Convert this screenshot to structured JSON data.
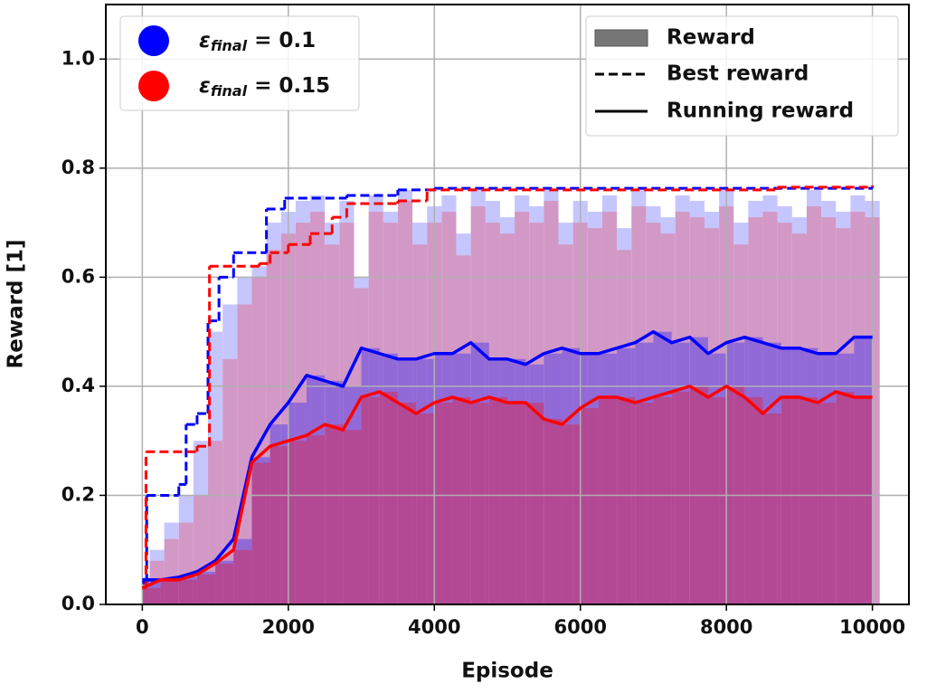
{
  "chart_data": {
    "type": "line",
    "xlabel": "Episode",
    "ylabel": "Reward [1]",
    "xlim": [
      -500,
      10500
    ],
    "ylim": [
      0,
      1.1
    ],
    "xticks": [
      0,
      2000,
      4000,
      6000,
      8000,
      10000
    ],
    "yticks": [
      {
        "value": 0,
        "label": "0.0"
      },
      0.2,
      0.4,
      0.6,
      0.8,
      {
        "value": 1,
        "label": "1.0"
      }
    ],
    "grid": true,
    "style_legend": {
      "reward": "Reward",
      "best": "Best reward",
      "running": "Running reward"
    },
    "x": [
      0,
      250,
      500,
      750,
      1000,
      1250,
      1500,
      1750,
      2000,
      2250,
      2500,
      2750,
      3000,
      3250,
      3500,
      3750,
      4000,
      4250,
      4500,
      4750,
      5000,
      5250,
      5500,
      5750,
      6000,
      6250,
      6500,
      6750,
      7000,
      7250,
      7500,
      7750,
      8000,
      8250,
      8500,
      8750,
      9000,
      9250,
      9500,
      9750,
      10000
    ],
    "reward_x": [
      0,
      200,
      400,
      600,
      800,
      1000,
      1200,
      1400,
      1600,
      1800,
      2000,
      2200,
      2400,
      2600,
      2800,
      3000,
      3200,
      3400,
      3600,
      3800,
      4000,
      4200,
      4400,
      4600,
      4800,
      5000,
      5200,
      5400,
      5600,
      5800,
      6000,
      6200,
      6400,
      6600,
      6800,
      7000,
      7200,
      7400,
      7600,
      7800,
      8000,
      8200,
      8400,
      8600,
      8800,
      9000,
      9200,
      9400,
      9600,
      9800,
      10000
    ],
    "series": [
      {
        "name": [
          "ε",
          "final",
          " = 0.1"
        ],
        "color": "#0000ff",
        "values": [
          0.045,
          0.045,
          0.05,
          0.06,
          0.08,
          0.12,
          0.27,
          0.33,
          0.37,
          0.42,
          0.41,
          0.4,
          0.47,
          0.46,
          0.45,
          0.45,
          0.46,
          0.46,
          0.48,
          0.45,
          0.45,
          0.44,
          0.46,
          0.47,
          0.46,
          0.46,
          0.47,
          0.48,
          0.5,
          0.48,
          0.49,
          0.46,
          0.48,
          0.49,
          0.48,
          0.47,
          0.47,
          0.46,
          0.46,
          0.49,
          0.49
        ],
        "best": {
          "x": [
            0,
            60,
            500,
            600,
            750,
            900,
            1050,
            1250,
            1700,
            1950,
            2800,
            3500,
            4000,
            10000
          ],
          "values": [
            0.04,
            0.2,
            0.22,
            0.33,
            0.35,
            0.52,
            0.6,
            0.645,
            0.725,
            0.745,
            0.75,
            0.76,
            0.763,
            0.765
          ]
        },
        "rewards": [
          0.05,
          0.1,
          0.15,
          0.2,
          0.3,
          0.5,
          0.55,
          0.6,
          0.62,
          0.7,
          0.72,
          0.74,
          0.75,
          0.7,
          0.74,
          0.6,
          0.75,
          0.72,
          0.76,
          0.7,
          0.73,
          0.75,
          0.68,
          0.76,
          0.74,
          0.71,
          0.75,
          0.73,
          0.76,
          0.7,
          0.74,
          0.72,
          0.75,
          0.69,
          0.76,
          0.73,
          0.71,
          0.75,
          0.74,
          0.72,
          0.76,
          0.7,
          0.74,
          0.75,
          0.73,
          0.71,
          0.76,
          0.74,
          0.72,
          0.75,
          0.74
        ]
      },
      {
        "name": [
          "ε",
          "final",
          " = 0.15"
        ],
        "color": "#ff0000",
        "values": [
          0.03,
          0.045,
          0.045,
          0.055,
          0.075,
          0.1,
          0.26,
          0.29,
          0.3,
          0.31,
          0.33,
          0.32,
          0.38,
          0.39,
          0.37,
          0.35,
          0.37,
          0.38,
          0.37,
          0.38,
          0.37,
          0.37,
          0.34,
          0.33,
          0.36,
          0.38,
          0.38,
          0.37,
          0.38,
          0.39,
          0.4,
          0.38,
          0.4,
          0.38,
          0.35,
          0.38,
          0.38,
          0.37,
          0.39,
          0.38,
          0.38
        ],
        "best": {
          "x": [
            0,
            50,
            750,
            920,
            1600,
            1750,
            2000,
            2300,
            2600,
            2800,
            3500,
            3900,
            8700,
            10000
          ],
          "values": [
            0.03,
            0.28,
            0.29,
            0.62,
            0.625,
            0.645,
            0.66,
            0.68,
            0.71,
            0.735,
            0.74,
            0.76,
            0.765,
            0.768
          ]
        },
        "rewards": [
          0.04,
          0.08,
          0.12,
          0.15,
          0.2,
          0.3,
          0.45,
          0.55,
          0.6,
          0.65,
          0.68,
          0.7,
          0.72,
          0.66,
          0.7,
          0.58,
          0.72,
          0.7,
          0.74,
          0.66,
          0.7,
          0.72,
          0.64,
          0.73,
          0.7,
          0.68,
          0.72,
          0.7,
          0.74,
          0.66,
          0.7,
          0.69,
          0.72,
          0.65,
          0.73,
          0.7,
          0.68,
          0.72,
          0.71,
          0.69,
          0.73,
          0.66,
          0.71,
          0.72,
          0.7,
          0.68,
          0.73,
          0.71,
          0.69,
          0.72,
          0.71
        ]
      }
    ]
  }
}
